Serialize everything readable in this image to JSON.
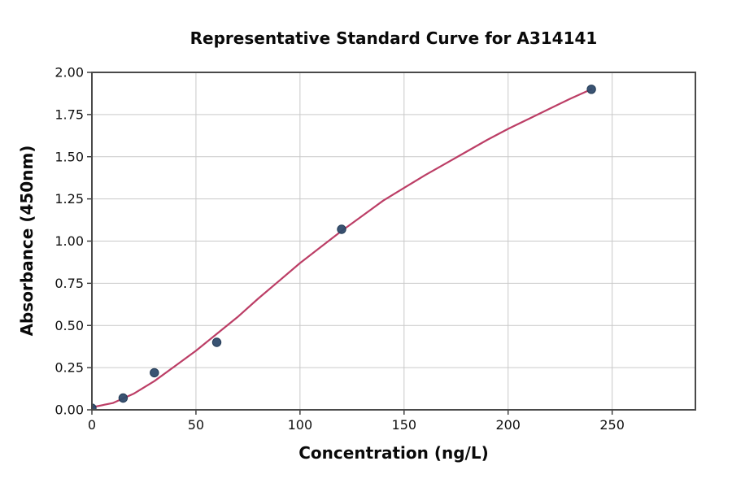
{
  "figure": {
    "title": "Representative Standard Curve for A314141",
    "xlabel": "Concentration (ng/L)",
    "ylabel": "Absorbance (450nm)"
  },
  "chart_data": {
    "type": "scatter",
    "title": "Representative Standard Curve for A314141",
    "xlabel": "Concentration (ng/L)",
    "ylabel": "Absorbance (450nm)",
    "xlim": [
      0,
      290
    ],
    "ylim": [
      0,
      2.0
    ],
    "grid": true,
    "legend": "none",
    "x_ticks": {
      "values": [
        0,
        50,
        100,
        150,
        200,
        250
      ],
      "labels": [
        "0",
        "50",
        "100",
        "150",
        "200",
        "250"
      ]
    },
    "y_ticks": {
      "values": [
        0,
        0.25,
        0.5,
        0.75,
        1.0,
        1.25,
        1.5,
        1.75,
        2.0
      ],
      "labels": [
        "0.00",
        "0.25",
        "0.50",
        "0.75",
        "1.00",
        "1.25",
        "1.50",
        "1.75",
        "2.00"
      ]
    },
    "series": [
      {
        "name": "fit_curve",
        "type": "line",
        "color": "#bc3e66",
        "x": [
          0,
          10,
          20,
          30,
          40,
          50,
          60,
          70,
          80,
          90,
          100,
          110,
          120,
          130,
          140,
          150,
          160,
          170,
          180,
          190,
          200,
          210,
          220,
          230,
          240
        ],
        "y": [
          0.015,
          0.04,
          0.095,
          0.17,
          0.26,
          0.35,
          0.45,
          0.55,
          0.66,
          0.765,
          0.87,
          0.965,
          1.06,
          1.15,
          1.24,
          1.315,
          1.39,
          1.46,
          1.53,
          1.6,
          1.665,
          1.725,
          1.785,
          1.845,
          1.9
        ]
      },
      {
        "name": "standard_points",
        "type": "scatter",
        "color": "#2f4b6b",
        "x": [
          0,
          15,
          30,
          60,
          120,
          240
        ],
        "y": [
          0.01,
          0.07,
          0.22,
          0.4,
          1.07,
          1.9
        ]
      }
    ],
    "style": {
      "grid_color": "#c9c9c9",
      "spine_color": "#4a4a4a",
      "tick_color": "#333333",
      "text_color": "#111111",
      "background": "#ffffff",
      "curve_color": "#bc3e66",
      "point_color": "#2f4b6b"
    }
  }
}
